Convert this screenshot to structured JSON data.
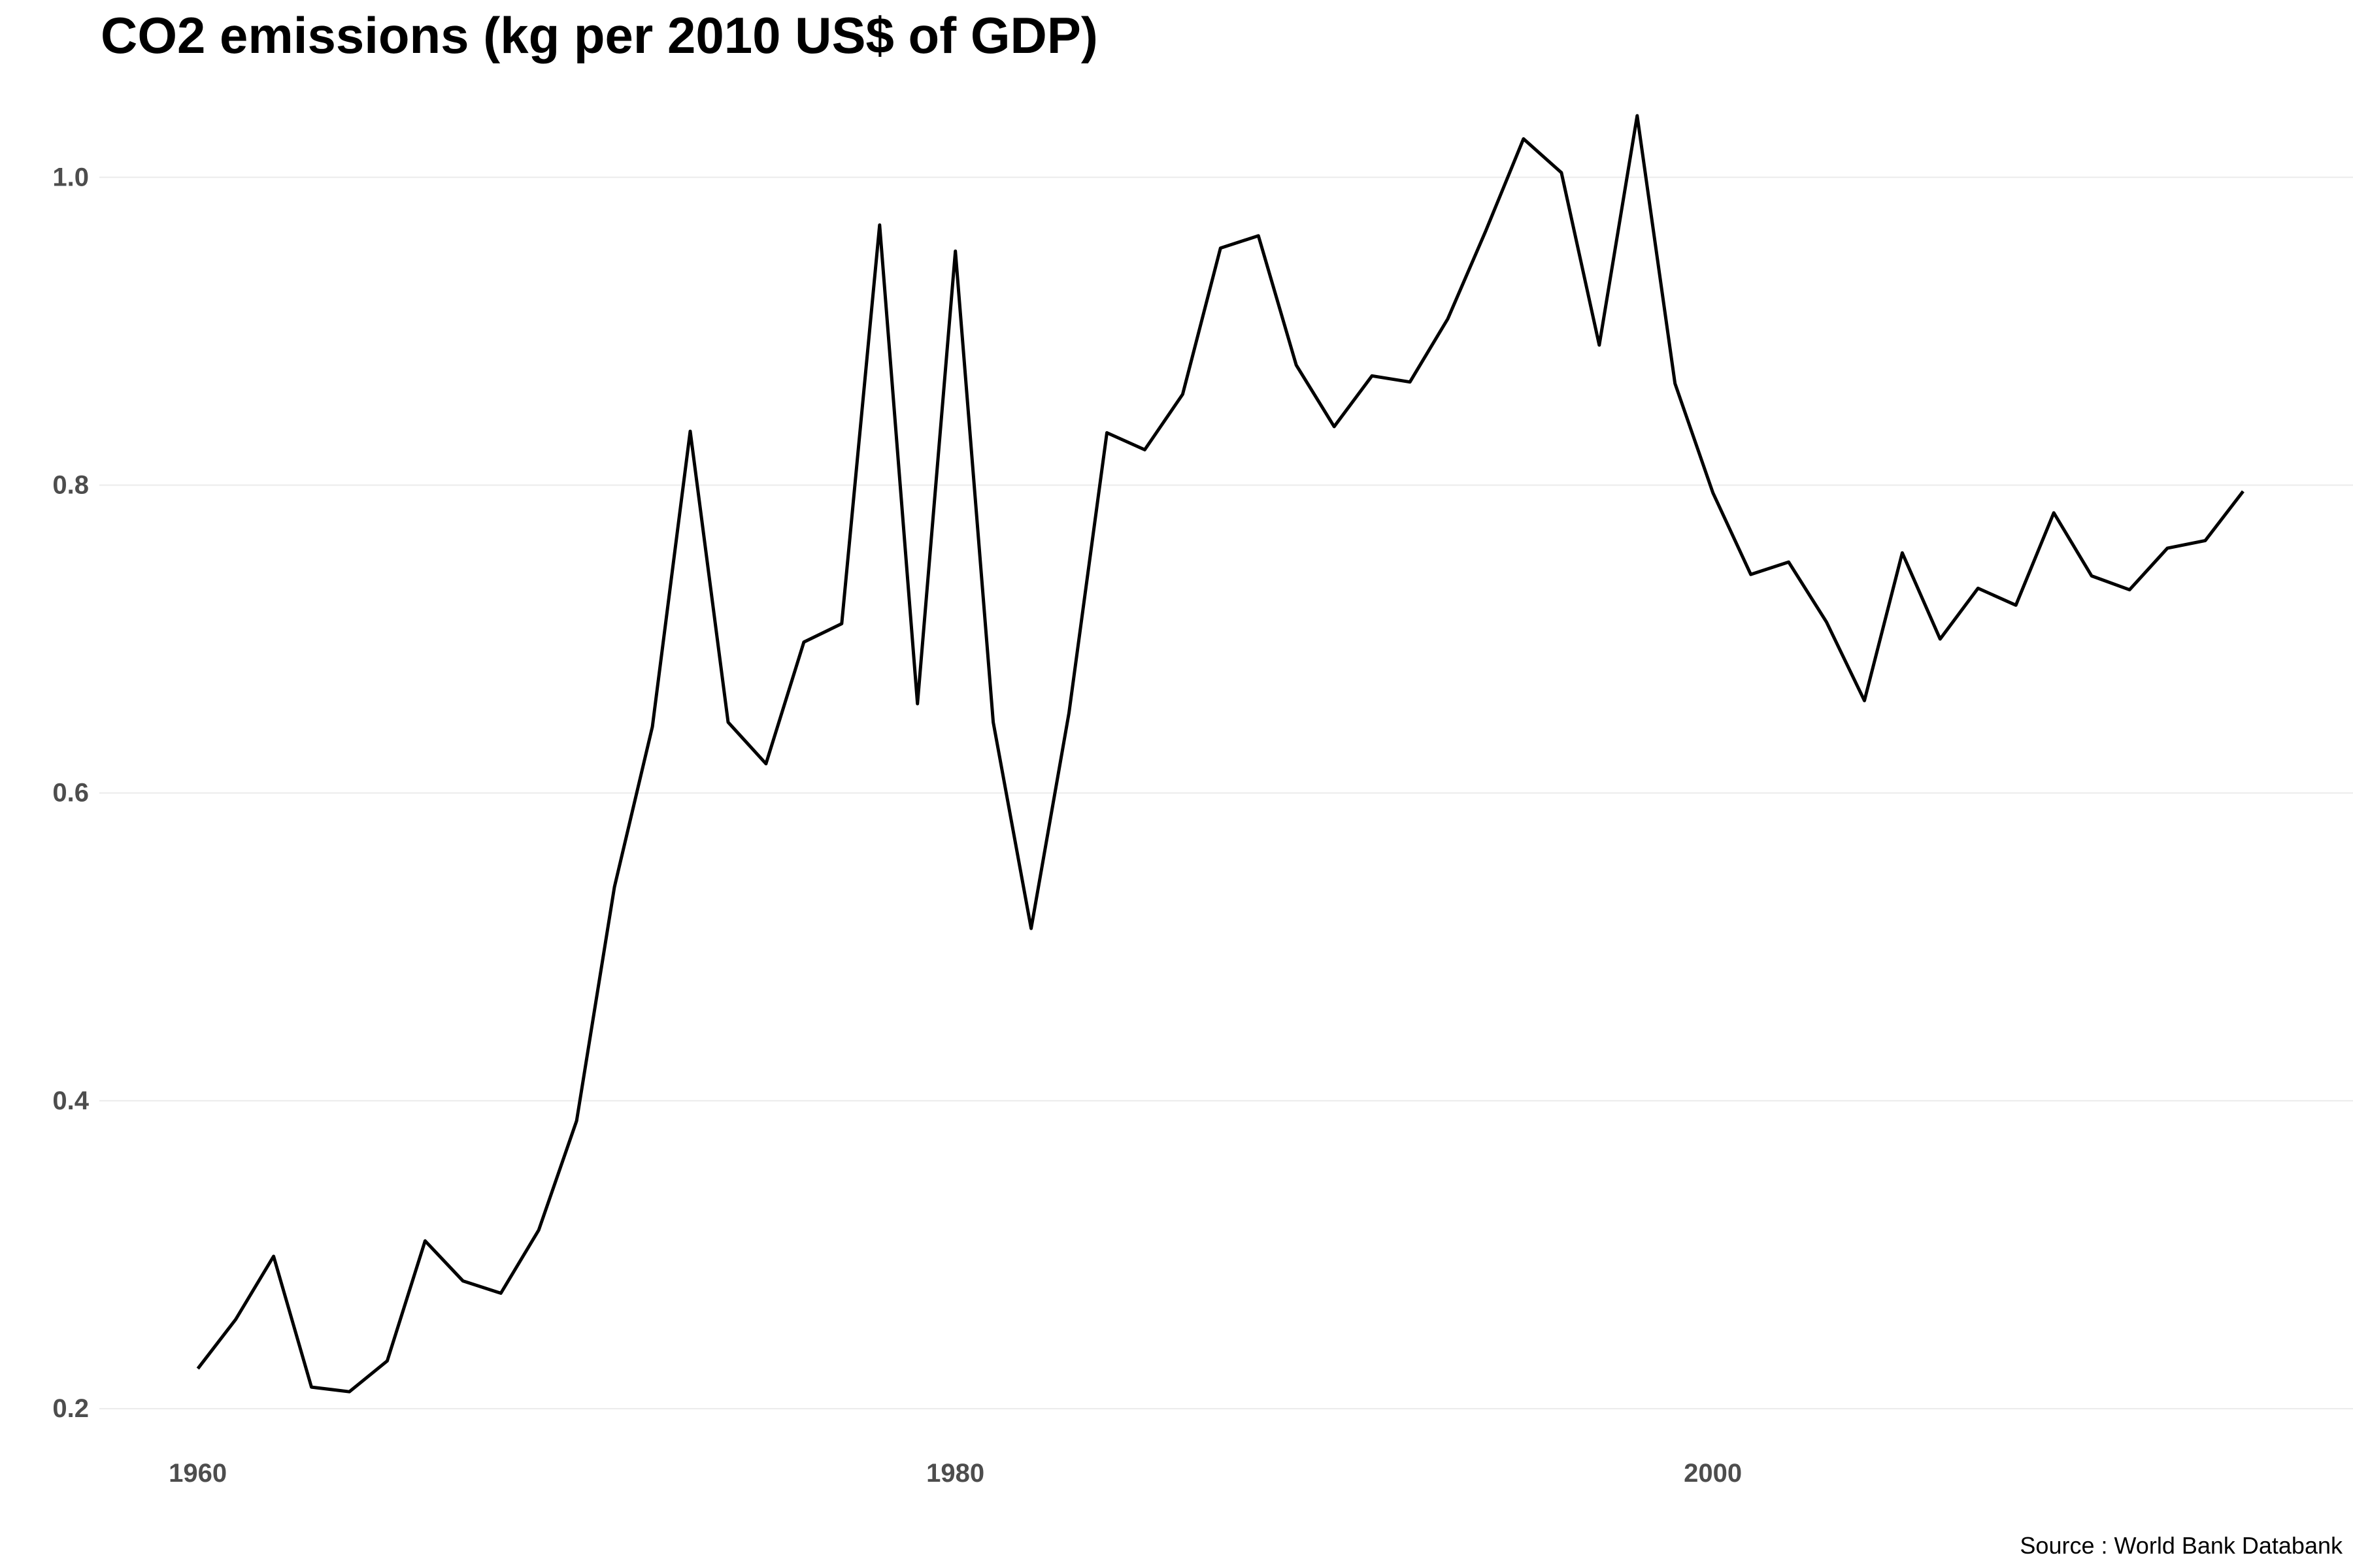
{
  "chart_data": {
    "type": "line",
    "title": "CO2 emissions (kg per 2010 US$ of GDP)",
    "caption": "Source : World Bank Databank",
    "xlabel": "",
    "ylabel": "",
    "xlim": [
      1957.4,
      2016.9
    ],
    "ylim": [
      0.175,
      1.06
    ],
    "x_ticks": [
      1960,
      1980,
      2000
    ],
    "y_ticks": [
      0.2,
      0.4,
      0.6,
      0.8,
      1.0
    ],
    "x_tick_labels": [
      "1960",
      "1980",
      "2000"
    ],
    "y_tick_labels": [
      "0.2",
      "0.4",
      "0.6",
      "0.8",
      "1.0"
    ],
    "grid": true,
    "legend": "none",
    "line_color": "#000000",
    "grid_color": "#ebebeb",
    "series": [
      {
        "x": [
          1960,
          1961,
          1962,
          1963,
          1964,
          1965,
          1966,
          1967,
          1968,
          1969,
          1970,
          1971,
          1972,
          1973,
          1974,
          1975,
          1976,
          1977,
          1978,
          1979,
          1980,
          1981,
          1982,
          1983,
          1984,
          1985,
          1986,
          1987,
          1988,
          1989,
          1990,
          1991,
          1992,
          1993,
          1994,
          1995,
          1996,
          1997,
          1998,
          1999,
          2000,
          2001,
          2002,
          2003,
          2004,
          2005,
          2006,
          2007,
          2008,
          2009,
          2010,
          2011,
          2012,
          2013,
          2014
        ],
        "values": [
          0.226,
          0.258,
          0.299,
          0.214,
          0.211,
          0.231,
          0.309,
          0.283,
          0.275,
          0.316,
          0.387,
          0.539,
          0.643,
          0.835,
          0.646,
          0.619,
          0.698,
          0.71,
          0.969,
          0.658,
          0.952,
          0.646,
          0.512,
          0.652,
          0.834,
          0.823,
          0.859,
          0.954,
          0.962,
          0.878,
          0.838,
          0.871,
          0.867,
          0.908,
          0.965,
          1.025,
          1.003,
          0.891,
          1.04,
          0.866,
          0.795,
          0.742,
          0.75,
          0.711,
          0.66,
          0.756,
          0.7,
          0.733,
          0.722,
          0.782,
          0.741,
          0.732,
          0.759,
          0.764,
          0.796
        ]
      }
    ]
  }
}
